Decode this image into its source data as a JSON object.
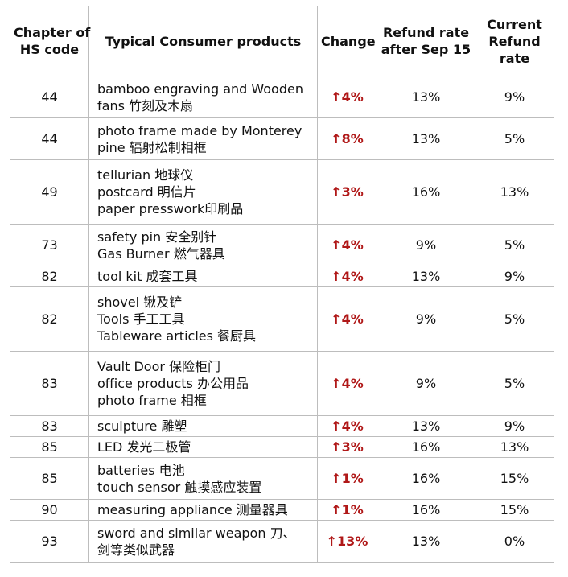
{
  "headers": {
    "chapter": [
      "Chapter of",
      "HS code"
    ],
    "products": [
      "Typical Consumer products"
    ],
    "change": [
      "Change"
    ],
    "after": [
      "Refund rate",
      "after Sep 15"
    ],
    "current": [
      "Current",
      "Refund",
      "rate"
    ]
  },
  "rows": [
    {
      "chapter": "44",
      "products": [
        "bamboo engraving and Wooden",
        "fans 竹刻及木扇"
      ],
      "change": "↑4%",
      "after": "13%",
      "current": "9%"
    },
    {
      "chapter": "44",
      "products": [
        "photo frame made by Monterey",
        "pine 辐射松制相框"
      ],
      "change": "↑8%",
      "after": "13%",
      "current": "5%"
    },
    {
      "chapter": "49",
      "products": [
        "tellurian 地球仪",
        "postcard 明信片",
        "paper presswork印刷品"
      ],
      "change": "↑3%",
      "after": "16%",
      "current": "13%"
    },
    {
      "chapter": "73",
      "products": [
        "safety pin 安全别针",
        "Gas Burner 燃气器具"
      ],
      "change": "↑4%",
      "after": "9%",
      "current": "5%"
    },
    {
      "chapter": "82",
      "products": [
        "tool kit 成套工具"
      ],
      "change": "↑4%",
      "after": "13%",
      "current": "9%"
    },
    {
      "chapter": "82",
      "products": [
        "shovel 锹及铲",
        "Tools 手工工具",
        "Tableware articles 餐厨具"
      ],
      "change": "↑4%",
      "after": "9%",
      "current": "5%"
    },
    {
      "chapter": "83",
      "products": [
        "Vault Door 保险柜门",
        "office products 办公用品",
        "photo frame 相框"
      ],
      "change": "↑4%",
      "after": "9%",
      "current": "5%"
    },
    {
      "chapter": "83",
      "products": [
        "sculpture 雕塑"
      ],
      "change": "↑4%",
      "after": "13%",
      "current": "9%"
    },
    {
      "chapter": "85",
      "products": [
        "LED 发光二极管"
      ],
      "change": "↑3%",
      "after": "16%",
      "current": "13%"
    },
    {
      "chapter": "85",
      "products": [
        "batteries 电池",
        "touch sensor 触摸感应装置"
      ],
      "change": "↑1%",
      "after": "16%",
      "current": "15%"
    },
    {
      "chapter": "90",
      "products": [
        "measuring appliance 测量器具"
      ],
      "change": "↑1%",
      "after": "16%",
      "current": "15%"
    },
    {
      "chapter": "93",
      "products": [
        "sword and similar weapon 刀、",
        "剑等类似武器"
      ],
      "change": "↑13%",
      "after": "13%",
      "current": "0%"
    }
  ]
}
